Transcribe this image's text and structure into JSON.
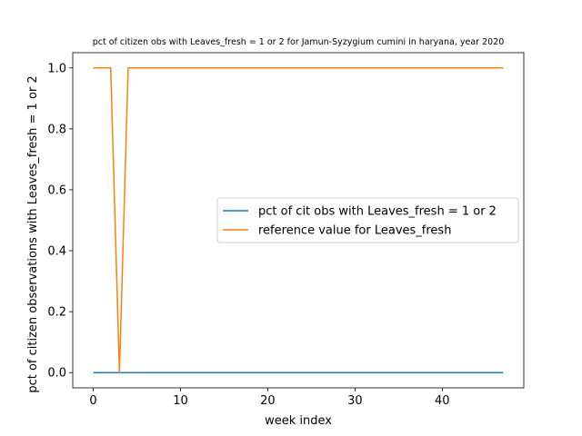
{
  "chart_data": {
    "type": "line",
    "title": "pct of citizen obs with Leaves_fresh = 1 or 2 for Jamun-Syzygium cumini in haryana, year 2020",
    "xlabel": "week index",
    "ylabel": "pct of citizen observations with Leaves_fresh = 1 or 2",
    "xlim": [
      -2.35,
      49.35
    ],
    "ylim": [
      -0.05,
      1.05
    ],
    "xticks": [
      0,
      10,
      20,
      30,
      40
    ],
    "xtick_labels": [
      "0",
      "10",
      "20",
      "30",
      "40"
    ],
    "yticks": [
      0.0,
      0.2,
      0.4,
      0.6,
      0.8,
      1.0
    ],
    "ytick_labels": [
      "0.0",
      "0.2",
      "0.4",
      "0.6",
      "0.8",
      "1.0"
    ],
    "grid": false,
    "legend_position": "center-right",
    "series": [
      {
        "name": "pct of cit obs with Leaves_fresh = 1 or 2",
        "color": "#1f77b4",
        "x": [
          0,
          1,
          2,
          3,
          4,
          5,
          6,
          7,
          8,
          9,
          10,
          11,
          12,
          13,
          14,
          15,
          16,
          17,
          18,
          19,
          20,
          21,
          22,
          23,
          24,
          25,
          26,
          27,
          28,
          29,
          30,
          31,
          32,
          33,
          34,
          35,
          36,
          37,
          38,
          39,
          40,
          41,
          42,
          43,
          44,
          45,
          46,
          47
        ],
        "y": [
          0,
          0,
          0,
          0,
          0,
          0,
          0,
          0,
          0,
          0,
          0,
          0,
          0,
          0,
          0,
          0,
          0,
          0,
          0,
          0,
          0,
          0,
          0,
          0,
          0,
          0,
          0,
          0,
          0,
          0,
          0,
          0,
          0,
          0,
          0,
          0,
          0,
          0,
          0,
          0,
          0,
          0,
          0,
          0,
          0,
          0,
          0,
          0
        ]
      },
      {
        "name": "reference value for Leaves_fresh",
        "color": "#ff7f0e",
        "x": [
          0,
          1,
          2,
          3,
          4,
          5,
          6,
          7,
          8,
          9,
          10,
          11,
          12,
          13,
          14,
          15,
          16,
          17,
          18,
          19,
          20,
          21,
          22,
          23,
          24,
          25,
          26,
          27,
          28,
          29,
          30,
          31,
          32,
          33,
          34,
          35,
          36,
          37,
          38,
          39,
          40,
          41,
          42,
          43,
          44,
          45,
          46,
          47
        ],
        "y": [
          1,
          1,
          1,
          0,
          1,
          1,
          1,
          1,
          1,
          1,
          1,
          1,
          1,
          1,
          1,
          1,
          1,
          1,
          1,
          1,
          1,
          1,
          1,
          1,
          1,
          1,
          1,
          1,
          1,
          1,
          1,
          1,
          1,
          1,
          1,
          1,
          1,
          1,
          1,
          1,
          1,
          1,
          1,
          1,
          1,
          1,
          1,
          1
        ]
      }
    ]
  }
}
